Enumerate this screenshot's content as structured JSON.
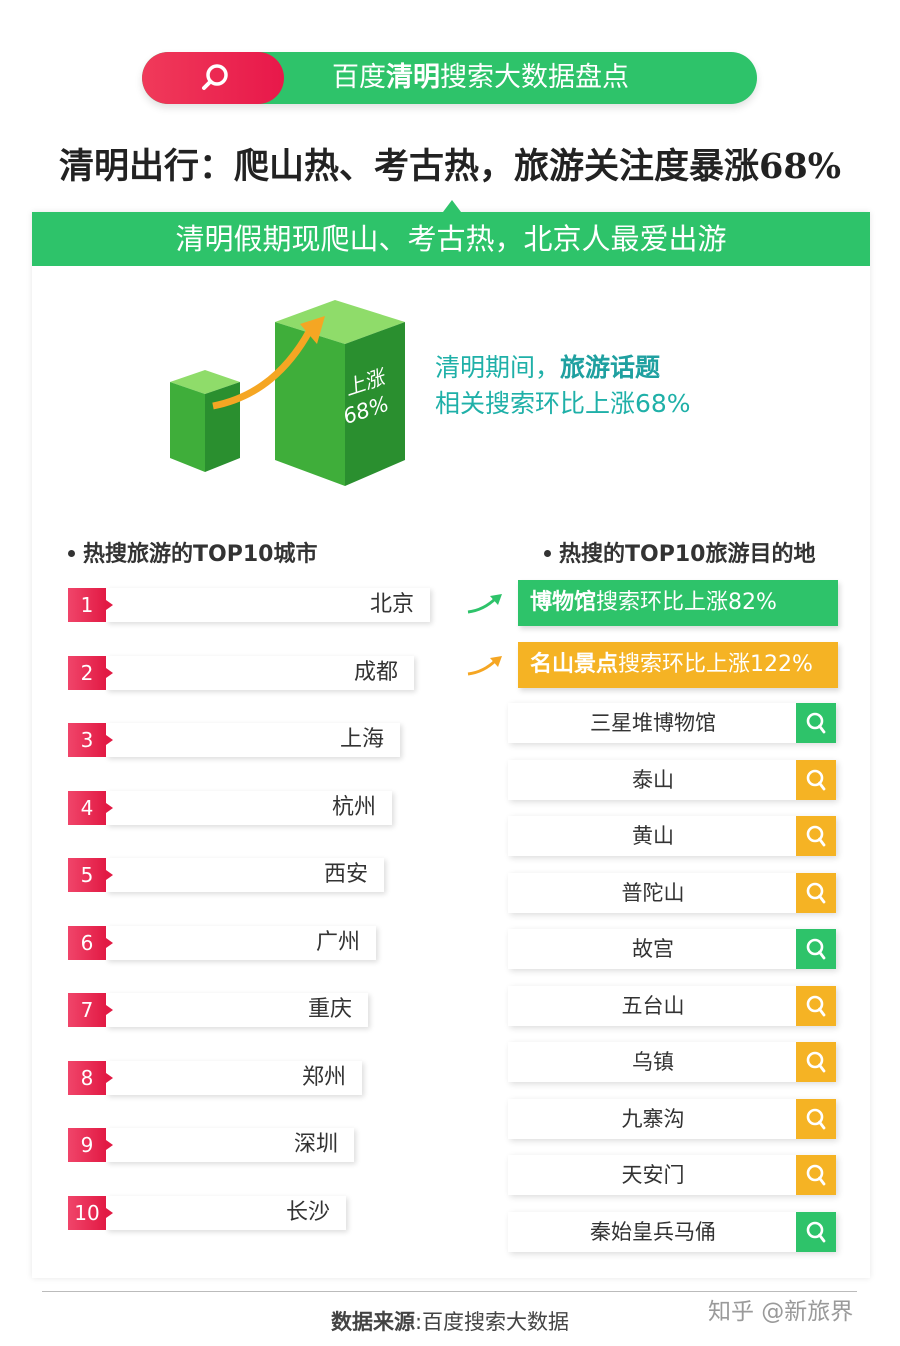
{
  "header": {
    "pill_pre": "百度",
    "pill_bold": "清明",
    "pill_post": "搜索大数据盘点",
    "headline": "清明出行：爬山热、考古热，旅游关注度暴涨68%"
  },
  "banner": {
    "text": "清明假期现爬山、考古热，北京人最爱出游"
  },
  "chart_badge": {
    "line1": "上涨",
    "line2": "68%"
  },
  "callout": {
    "line1_pre": "清明期间，",
    "line1_bold": "旅游话题",
    "line2": "相关搜索环比上涨68%"
  },
  "cities": {
    "title": "热搜旅游的TOP10城市",
    "items": [
      {
        "rank": "1",
        "name": "北京"
      },
      {
        "rank": "2",
        "name": "成都"
      },
      {
        "rank": "3",
        "name": "上海"
      },
      {
        "rank": "4",
        "name": "杭州"
      },
      {
        "rank": "5",
        "name": "西安"
      },
      {
        "rank": "6",
        "name": "广州"
      },
      {
        "rank": "7",
        "name": "重庆"
      },
      {
        "rank": "8",
        "name": "郑州"
      },
      {
        "rank": "9",
        "name": "深圳"
      },
      {
        "rank": "10",
        "name": "长沙"
      }
    ]
  },
  "destinations": {
    "title": "热搜的TOP10旅游目的地",
    "highlight1": {
      "bold": "博物馆",
      "rest": "搜索环比上涨82%",
      "color": "#2ec36a"
    },
    "highlight2": {
      "bold": "名山景点",
      "rest": "搜索环比上涨122%",
      "color": "#f5b324"
    },
    "items": [
      {
        "name": "三星堆博物馆",
        "icon": "search-icon",
        "color": "#2ec36a"
      },
      {
        "name": "泰山",
        "icon": "search-icon",
        "color": "#f5b324"
      },
      {
        "name": "黄山",
        "icon": "search-icon",
        "color": "#f5b324"
      },
      {
        "name": "普陀山",
        "icon": "search-icon",
        "color": "#f5b324"
      },
      {
        "name": "故宫",
        "icon": "search-icon",
        "color": "#2ec36a"
      },
      {
        "name": "五台山",
        "icon": "search-icon",
        "color": "#f5b324"
      },
      {
        "name": "乌镇",
        "icon": "search-icon",
        "color": "#f5b324"
      },
      {
        "name": "九寨沟",
        "icon": "search-icon",
        "color": "#f5b324"
      },
      {
        "name": "天安门",
        "icon": "search-icon",
        "color": "#f5b324"
      },
      {
        "name": "秦始皇兵马俑",
        "icon": "search-icon",
        "color": "#2ec36a"
      }
    ]
  },
  "footer": {
    "source_bold": "数据来源",
    "source_rest": ":百度搜索大数据",
    "watermark": "知乎 @新旅界"
  },
  "colors": {
    "green": "#2ec36a",
    "red": "#e8184a",
    "orange": "#f5b324"
  }
}
